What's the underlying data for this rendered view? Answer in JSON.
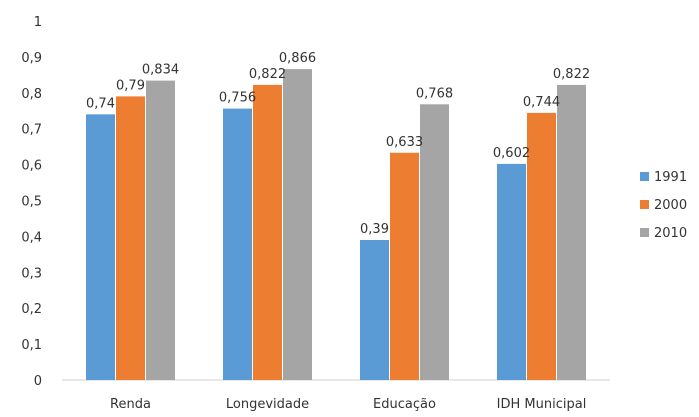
{
  "chart_data": {
    "type": "bar",
    "title_fragment": "",
    "categories": [
      "Renda",
      "Longevidade",
      "Educação",
      "IDH Municipal"
    ],
    "series": [
      {
        "name": "1991",
        "color": "#5b9bd5",
        "values": [
          0.74,
          0.756,
          0.39,
          0.602
        ],
        "labels": [
          "0,74",
          "0,756",
          "0,39",
          "0,602"
        ]
      },
      {
        "name": "2000",
        "color": "#ed7d31",
        "values": [
          0.79,
          0.822,
          0.633,
          0.744
        ],
        "labels": [
          "0,79",
          "0,822",
          "0,633",
          "0,744"
        ]
      },
      {
        "name": "2010",
        "color": "#a5a5a5",
        "values": [
          0.834,
          0.866,
          0.768,
          0.822
        ],
        "labels": [
          "0,834",
          "0,866",
          "0,768",
          "0,822"
        ]
      }
    ],
    "yticks": [
      {
        "value": 0,
        "label": "0"
      },
      {
        "value": 0.1,
        "label": "0,1"
      },
      {
        "value": 0.2,
        "label": "0,2"
      },
      {
        "value": 0.3,
        "label": "0,3"
      },
      {
        "value": 0.4,
        "label": "0,4"
      },
      {
        "value": 0.5,
        "label": "0,5"
      },
      {
        "value": 0.6,
        "label": "0,6"
      },
      {
        "value": 0.7,
        "label": "0,7"
      },
      {
        "value": 0.8,
        "label": "0,8"
      },
      {
        "value": 0.9,
        "label": "0,9"
      },
      {
        "value": 1,
        "label": "1"
      }
    ],
    "ylim": [
      0,
      1
    ],
    "grid": false,
    "legend_position": "right"
  }
}
